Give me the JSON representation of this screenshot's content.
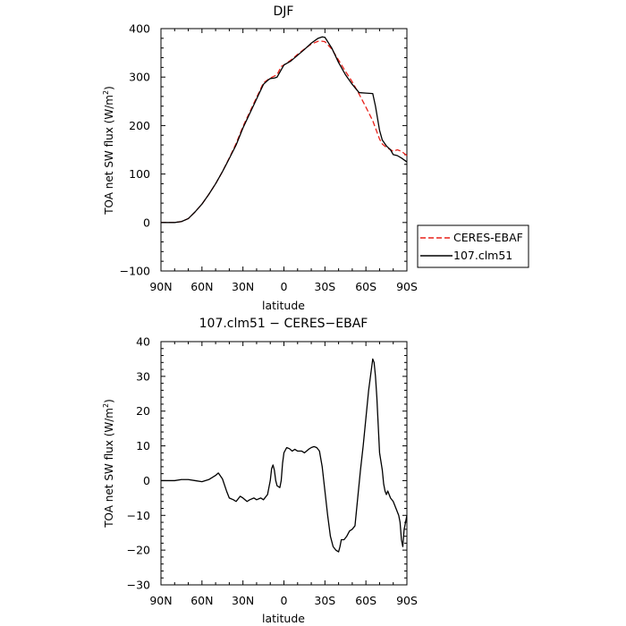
{
  "chart_data": [
    {
      "type": "line",
      "title": "DJF",
      "xlabel": "latitude",
      "ylabel_main": "TOA net SW flux (W/m",
      "ylabel_sup": "2",
      "ylabel_tail": ")",
      "xlim": [
        90,
        -90
      ],
      "ylim": [
        -100,
        400
      ],
      "x_ticks": [
        {
          "value": 90,
          "label": "90N"
        },
        {
          "value": 60,
          "label": "60N"
        },
        {
          "value": 30,
          "label": "30N"
        },
        {
          "value": 0,
          "label": "0"
        },
        {
          "value": -30,
          "label": "30S"
        },
        {
          "value": -60,
          "label": "60S"
        },
        {
          "value": -90,
          "label": "90S"
        }
      ],
      "y_ticks": [
        -100,
        0,
        100,
        200,
        300,
        400
      ],
      "legend_position": "right",
      "series": [
        {
          "name": "CERES-EBAF",
          "color": "#e8211a",
          "dash": "dashed",
          "x": [
            90,
            80,
            75,
            70,
            65,
            60,
            55,
            50,
            45,
            40,
            35,
            30,
            25,
            20,
            15,
            10,
            5,
            2,
            0,
            -5,
            -10,
            -15,
            -20,
            -25,
            -28,
            -30,
            -35,
            -40,
            -45,
            -50,
            -55,
            -60,
            -65,
            -70,
            -72,
            -75,
            -78,
            -80,
            -83,
            -86,
            -90
          ],
          "y": [
            0,
            0,
            2,
            8,
            22,
            38,
            58,
            80,
            105,
            133,
            163,
            198,
            228,
            258,
            288,
            298,
            305,
            322,
            325,
            335,
            347,
            358,
            368,
            374,
            374,
            373,
            358,
            335,
            312,
            290,
            265,
            238,
            210,
            172,
            162,
            155,
            150,
            147,
            150,
            147,
            138
          ]
        },
        {
          "name": "107.clm51",
          "color": "#000000",
          "dash": "solid",
          "x": [
            90,
            80,
            75,
            70,
            65,
            60,
            55,
            50,
            45,
            40,
            35,
            30,
            25,
            20,
            15,
            12,
            10,
            7,
            5,
            2,
            0,
            -5,
            -10,
            -15,
            -20,
            -25,
            -28,
            -30,
            -35,
            -40,
            -45,
            -50,
            -55,
            -60,
            -65,
            -67,
            -70,
            -72,
            -75,
            -78,
            -80,
            -83,
            -86,
            -90
          ],
          "y": [
            0,
            0,
            2,
            8,
            22,
            38,
            58,
            80,
            105,
            132,
            160,
            195,
            225,
            255,
            285,
            293,
            297,
            298,
            300,
            315,
            325,
            333,
            345,
            357,
            370,
            380,
            383,
            382,
            360,
            330,
            305,
            285,
            268,
            267,
            266,
            240,
            190,
            170,
            158,
            150,
            140,
            138,
            133,
            125
          ]
        }
      ]
    },
    {
      "type": "line",
      "title": "107.clm51 − CERES−EBAF",
      "xlabel": "latitude",
      "ylabel_main": "TOA net SW flux (W/m",
      "ylabel_sup": "2",
      "ylabel_tail": ")",
      "xlim": [
        90,
        -90
      ],
      "ylim": [
        -30,
        40
      ],
      "x_ticks": [
        {
          "value": 90,
          "label": "90N"
        },
        {
          "value": 60,
          "label": "60N"
        },
        {
          "value": 30,
          "label": "30N"
        },
        {
          "value": 0,
          "label": "0"
        },
        {
          "value": -30,
          "label": "30S"
        },
        {
          "value": -60,
          "label": "60S"
        },
        {
          "value": -90,
          "label": "90S"
        }
      ],
      "y_ticks": [
        -30,
        -20,
        -10,
        0,
        10,
        20,
        30,
        40
      ],
      "series": [
        {
          "name": "",
          "color": "#000000",
          "dash": "solid",
          "x": [
            90,
            80,
            75,
            70,
            65,
            60,
            55,
            50,
            48,
            45,
            42,
            40,
            37,
            35,
            32,
            30,
            27,
            25,
            22,
            20,
            17,
            15,
            12,
            10,
            9,
            8,
            7,
            6,
            5,
            3,
            2,
            1,
            0,
            -2,
            -4,
            -6,
            -8,
            -10,
            -13,
            -15,
            -18,
            -20,
            -22,
            -24,
            -26,
            -28,
            -30,
            -32,
            -34,
            -36,
            -38,
            -40,
            -41,
            -42,
            -44,
            -46,
            -48,
            -50,
            -52,
            -54,
            -56,
            -58,
            -60,
            -62,
            -64,
            -65,
            -66,
            -67,
            -68,
            -69,
            -70,
            -72,
            -73,
            -74,
            -75,
            -76,
            -78,
            -80,
            -82,
            -84,
            -85,
            -86,
            -87,
            -88,
            -90
          ],
          "y": [
            0,
            0,
            0.3,
            0.3,
            0,
            -0.3,
            0.3,
            1.5,
            2.2,
            0.5,
            -3.0,
            -5.0,
            -5.5,
            -6.0,
            -4.5,
            -5.0,
            -6.0,
            -5.5,
            -5.0,
            -5.5,
            -5.0,
            -5.5,
            -4.0,
            0,
            3.5,
            4.5,
            3.0,
            0,
            -1.5,
            -2.0,
            0,
            5.0,
            8.0,
            9.5,
            9.2,
            8.5,
            9.0,
            8.5,
            8.5,
            8.0,
            9.0,
            9.5,
            9.8,
            9.5,
            8.5,
            4.0,
            -3.0,
            -10.0,
            -16.0,
            -19.0,
            -20.0,
            -20.5,
            -19.0,
            -17.0,
            -17.0,
            -16.0,
            -14.5,
            -14.0,
            -13.0,
            -5.0,
            3.0,
            10.0,
            18.0,
            26.0,
            32.0,
            35.0,
            34.0,
            30.0,
            24.0,
            16.0,
            8.0,
            3.0,
            -1.0,
            -3.0,
            -4.0,
            -3.0,
            -5.0,
            -6.0,
            -8.0,
            -10.0,
            -12.0,
            -17.0,
            -19.0,
            -14.0,
            -10.0
          ]
        }
      ]
    }
  ]
}
